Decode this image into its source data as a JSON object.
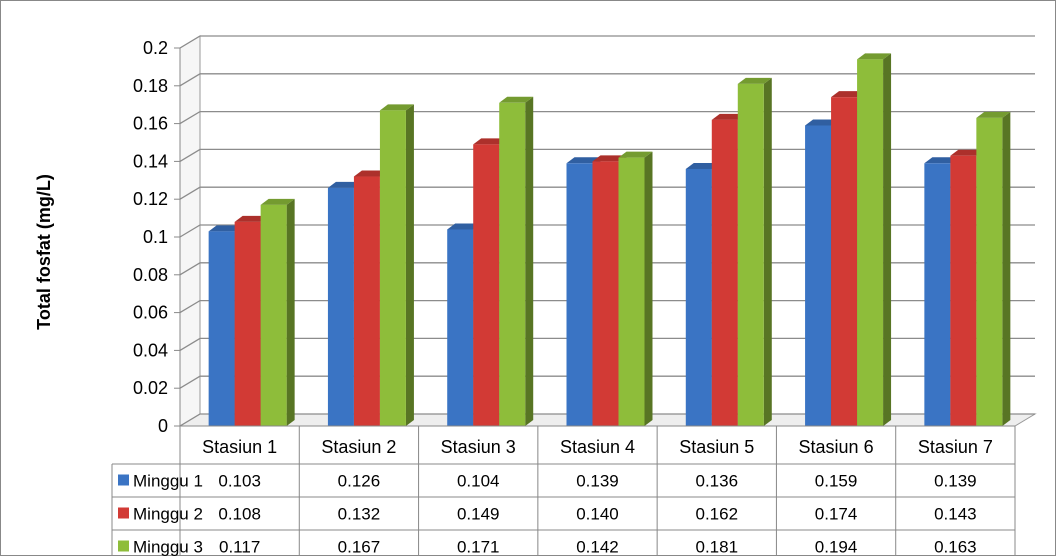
{
  "chart_data": {
    "type": "bar",
    "title": "",
    "xlabel": "",
    "ylabel": "Total fosfat (mg/L)",
    "ylim": [
      0,
      0.2
    ],
    "yticks": [
      "0",
      "0.02",
      "0.04",
      "0.06",
      "0.08",
      "0.1",
      "0.12",
      "0.14",
      "0.16",
      "0.18",
      "0.2"
    ],
    "grid": true,
    "legend_placement": "data table below chart",
    "categories": [
      "Stasiun 1",
      "Stasiun 2",
      "Stasiun 3",
      "Stasiun 4",
      "Stasiun 5",
      "Stasiun 6",
      "Stasiun 7"
    ],
    "series": [
      {
        "name": "Minggu 1",
        "color": "#3a74c4",
        "values": [
          0.103,
          0.126,
          0.104,
          0.139,
          0.136,
          0.159,
          0.139
        ],
        "labels": [
          "0.103",
          "0.126",
          "0.104",
          "0.139",
          "0.136",
          "0.159",
          "0.139"
        ]
      },
      {
        "name": "Minggu 2",
        "color": "#d23a35",
        "values": [
          0.108,
          0.132,
          0.149,
          0.14,
          0.162,
          0.174,
          0.143
        ],
        "labels": [
          "0.108",
          "0.132",
          "0.149",
          "0.140",
          "0.162",
          "0.174",
          "0.143"
        ]
      },
      {
        "name": "Minggu 3",
        "color": "#8ebd3a",
        "values": [
          0.117,
          0.167,
          0.171,
          0.142,
          0.181,
          0.194,
          0.163
        ],
        "labels": [
          "0.117",
          "0.167",
          "0.171",
          "0.142",
          "0.181",
          "0.194",
          "0.163"
        ]
      }
    ]
  }
}
